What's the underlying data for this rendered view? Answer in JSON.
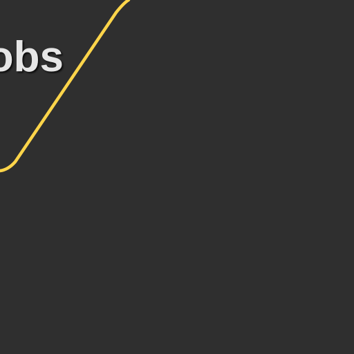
{
  "page": {
    "background_color": "#2f2f2f"
  },
  "heading": {
    "text": "obs",
    "color": "#e6e6e6"
  },
  "accent_curve": {
    "color": "#ffd54a"
  }
}
